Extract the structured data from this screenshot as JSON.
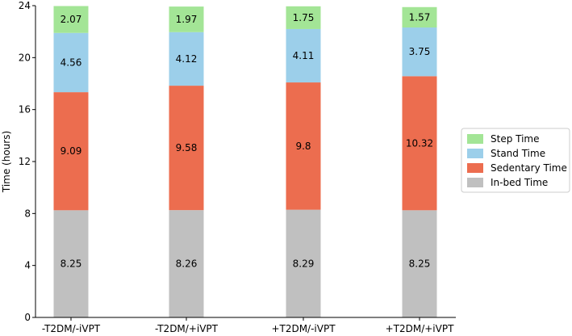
{
  "chart_data": {
    "type": "bar",
    "stacked": true,
    "title": "",
    "xlabel": "",
    "ylabel": "Time (hours)",
    "ylim": [
      0,
      24
    ],
    "yticks": [
      0,
      4,
      8,
      12,
      16,
      20,
      24
    ],
    "grid": false,
    "legend_position": "right",
    "categories": [
      "-T2DM/-iVPT",
      "-T2DM/+iVPT",
      "+T2DM/-iVPT",
      "+T2DM/+iVPT"
    ],
    "series": [
      {
        "name": "In-bed Time",
        "color": "#c0c0c0",
        "values": [
          8.25,
          8.26,
          8.29,
          8.25
        ]
      },
      {
        "name": "Sedentary Time",
        "color": "#ec6d4f",
        "values": [
          9.09,
          9.58,
          9.8,
          10.32
        ]
      },
      {
        "name": "Stand Time",
        "color": "#9ccfea",
        "values": [
          4.56,
          4.12,
          4.11,
          3.75
        ]
      },
      {
        "name": "Step Time",
        "color": "#a3e596",
        "values": [
          2.07,
          1.97,
          1.75,
          1.57
        ]
      }
    ],
    "legend_order": [
      "Step Time",
      "Stand Time",
      "Sedentary Time",
      "In-bed Time"
    ]
  }
}
